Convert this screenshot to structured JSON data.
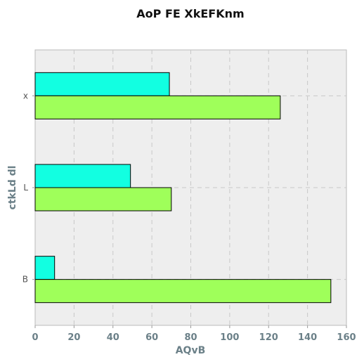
{
  "chart_data": {
    "type": "bar",
    "orientation": "horizontal",
    "title": "AoP FE XkEFKnm",
    "xlabel": "AQvB",
    "ylabel": "ctkLd  dl",
    "categories": [
      "x",
      "L",
      "B"
    ],
    "series": [
      {
        "color": "#12ffe1",
        "values": [
          69,
          49,
          10
        ]
      },
      {
        "color": "#9fff5a",
        "values": [
          126,
          70,
          152
        ]
      }
    ],
    "xlim": [
      0,
      160
    ],
    "xticks": [
      0,
      20,
      40,
      60,
      80,
      100,
      120,
      140,
      160
    ],
    "grid": true,
    "legend": "none"
  }
}
